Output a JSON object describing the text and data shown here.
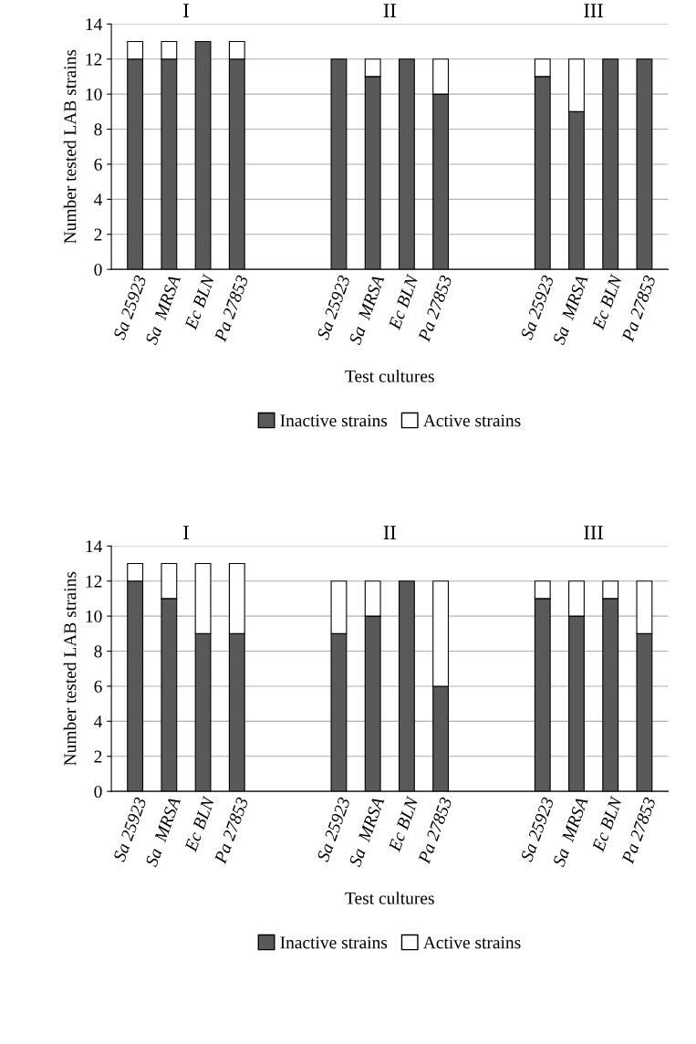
{
  "chart_data": [
    {
      "type": "bar",
      "stacked": true,
      "xlabel": "Test cultures",
      "ylabel": "Number tested LAB strains",
      "annotations": [
        "I",
        "II",
        "III"
      ],
      "categories": [
        "Sa 25923",
        "Sa  MRSA",
        "Ec BLN",
        "Pa 27853",
        null,
        null,
        "Sa 25923",
        "Sa  MRSA",
        "Ec BLN",
        "Pa 27853",
        null,
        null,
        "Sa 25923",
        "Sa  MRSA",
        "Ec BLN",
        "Pa 27853"
      ],
      "series": [
        {
          "name": "Inactive strains",
          "color": "#595959",
          "values": [
            12,
            12,
            13,
            12,
            null,
            null,
            12,
            11,
            12,
            10,
            null,
            null,
            11,
            9,
            12,
            12
          ]
        },
        {
          "name": "Active strains",
          "color": "#ffffff",
          "values": [
            1,
            1,
            0,
            1,
            null,
            null,
            0,
            1,
            0,
            2,
            null,
            null,
            1,
            3,
            0,
            0
          ]
        }
      ],
      "ylim": [
        0,
        14
      ],
      "yticks": [
        0,
        2,
        4,
        6,
        8,
        10,
        12,
        14
      ],
      "grid": "y",
      "legend": "bottom"
    },
    {
      "type": "bar",
      "stacked": true,
      "xlabel": "Test cultures",
      "ylabel": "Number tested LAB strains",
      "annotations": [
        "I",
        "II",
        "III"
      ],
      "categories": [
        "Sa 25923",
        "Sa  MRSA",
        "Ec BLN",
        "Pa 27853",
        null,
        null,
        "Sa 25923",
        "Sa  MRSA",
        "Ec BLN",
        "Pa 27853",
        null,
        null,
        "Sa 25923",
        "Sa  MRSA",
        "Ec BLN",
        "Pa 27853"
      ],
      "series": [
        {
          "name": "Inactive strains",
          "color": "#595959",
          "values": [
            12,
            11,
            9,
            9,
            null,
            null,
            9,
            10,
            12,
            6,
            null,
            null,
            11,
            10,
            11,
            9
          ]
        },
        {
          "name": "Active strains",
          "color": "#ffffff",
          "values": [
            1,
            2,
            4,
            4,
            null,
            null,
            3,
            2,
            0,
            6,
            null,
            null,
            1,
            2,
            1,
            3
          ]
        }
      ],
      "ylim": [
        0,
        14
      ],
      "yticks": [
        0,
        2,
        4,
        6,
        8,
        10,
        12,
        14
      ],
      "grid": "y",
      "legend": "bottom"
    }
  ]
}
